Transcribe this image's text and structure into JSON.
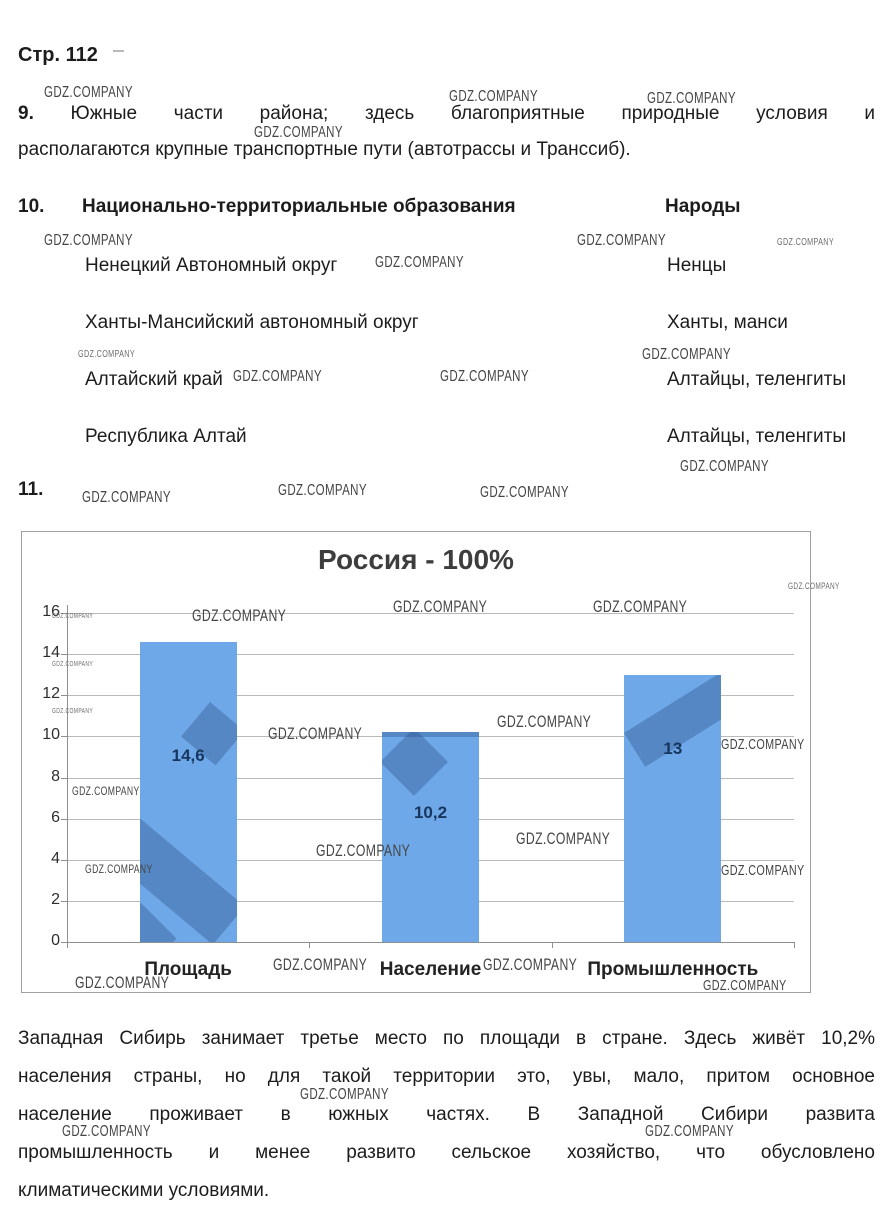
{
  "page": {
    "title": "Стр. 112"
  },
  "watermark": {
    "text": "GDZ.COMPANY"
  },
  "item9": {
    "number": "9.",
    "line1": "Южные части района; здесь благоприятные природные условия и",
    "line2": "располагаются крупные транспортные пути (автотрассы и Транссиб)."
  },
  "item10": {
    "number": "10.",
    "col1_header": "Национально-территориальные образования",
    "col2_header": "Народы",
    "rows": [
      {
        "territory": "Ненецкий Автономный округ",
        "people": "Ненцы"
      },
      {
        "territory": "Ханты-Мансийский автономный округ",
        "people": "Ханты, манси"
      },
      {
        "territory": "Алтайский край",
        "people": "Алтайцы, теленгиты"
      },
      {
        "territory": "Республика Алтай",
        "people": "Алтайцы, теленгиты"
      }
    ]
  },
  "item11": {
    "number": "11."
  },
  "chart_data": {
    "type": "bar",
    "title": "Россия - 100%",
    "categories": [
      "Площадь",
      "Население",
      "Промышленность"
    ],
    "values": [
      14.6,
      10.2,
      13
    ],
    "value_labels": [
      "14,6",
      "10,2",
      "13"
    ],
    "ylim": [
      0,
      16
    ],
    "yticks": [
      0,
      2,
      4,
      6,
      8,
      10,
      12,
      14,
      16
    ],
    "grid": true,
    "legend": false,
    "bar_color": "#6FA8E8",
    "value_label_color": "#17365D"
  },
  "paragraph": {
    "lines": [
      "Западная Сибирь занимает третье место по площади в стране. Здесь живёт 10,2%",
      "населения страны, но для такой территории это, увы, мало, притом основное",
      "население проживает в южных частях. В Западной Сибири развита",
      "промышленность и менее развито сельское хозяйство, что обусловлено",
      "климатическими условиями."
    ]
  }
}
